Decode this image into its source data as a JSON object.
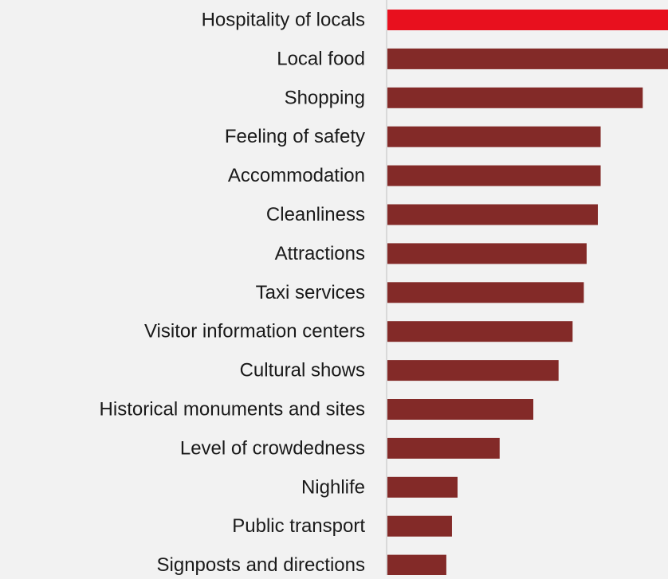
{
  "chart_data": {
    "type": "bar",
    "orientation": "horizontal",
    "categories": [
      "Hospitality of locals",
      "Local food",
      "Shopping",
      "Feeling of safety",
      "Accommodation",
      "Cleanliness",
      "Attractions",
      "Taxi services",
      "Visitor information centers",
      "Cultural shows",
      "Historical monuments and sites",
      "Level of crowdedness",
      "Nighlife",
      "Public transport",
      "Signposts and directions"
    ],
    "values": [
      100,
      100,
      91,
      76,
      76,
      75,
      71,
      70,
      66,
      61,
      52,
      40,
      25,
      23,
      21
    ],
    "highlight_index": 0,
    "title": "",
    "xlabel": "",
    "ylabel": "",
    "xlim": [
      0,
      100
    ],
    "grid": false,
    "legend": "none",
    "colors": {
      "bar": "#832a28",
      "highlight": "#e8101e",
      "axis_line": "#d9d9d9",
      "label": "#1a1a1a",
      "background": "#f2f2f2"
    }
  }
}
